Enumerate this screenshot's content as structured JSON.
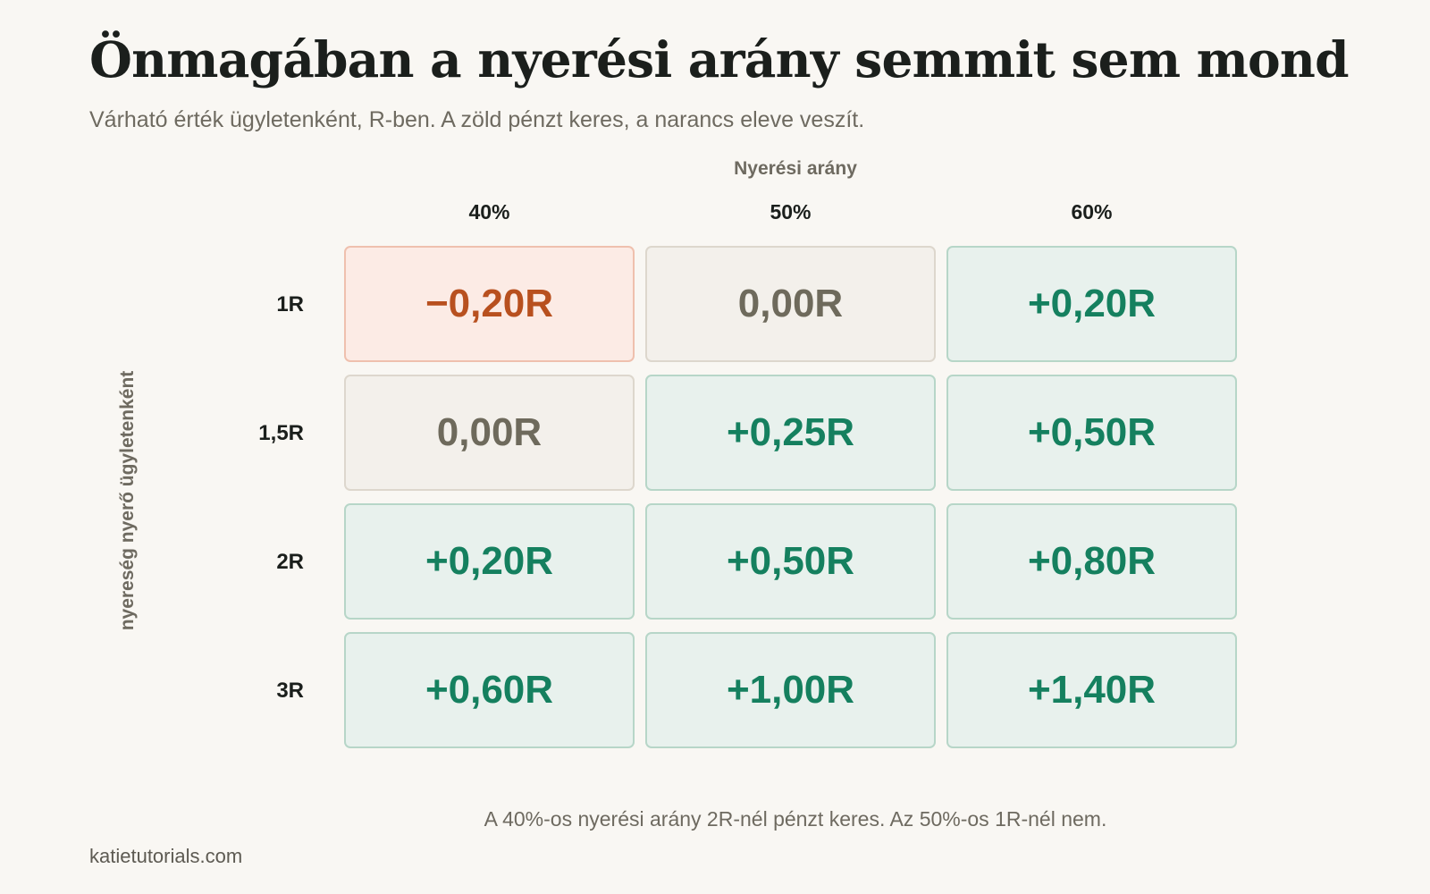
{
  "header": {
    "title": "Önmagában a nyerési arány semmit sem mond",
    "subtitle": "Várható érték ügyletenként, R-ben. A zöld pénzt keres, a narancs eleve veszít."
  },
  "chart_data": {
    "type": "heatmap",
    "title": "Önmagában a nyerési arány semmit sem mond",
    "subtitle": "Várható érték ügyletenként, R-ben. A zöld pénzt keres, a narancs eleve veszít.",
    "xlabel": "Nyerési arány",
    "ylabel": "nyereség nyerő ügyletenként",
    "columns": [
      "40%",
      "50%",
      "60%"
    ],
    "rows": [
      "1R",
      "1,5R",
      "2R",
      "3R"
    ],
    "win_rates": [
      0.4,
      0.5,
      0.6
    ],
    "win_sizes_R": [
      1,
      1.5,
      2,
      3
    ],
    "values": [
      [
        -0.2,
        0.0,
        0.2
      ],
      [
        0.0,
        0.25,
        0.5
      ],
      [
        0.2,
        0.5,
        0.8
      ],
      [
        0.6,
        1.0,
        1.4
      ]
    ],
    "labels": [
      [
        "−0,20R",
        "0,00R",
        "+0,20R"
      ],
      [
        "0,00R",
        "+0,25R",
        "+0,50R"
      ],
      [
        "+0,20R",
        "+0,50R",
        "+0,80R"
      ],
      [
        "+0,60R",
        "+1,00R",
        "+1,40R"
      ]
    ],
    "colors": {
      "positive_text": "#15805f",
      "positive_fill": "#e8f1ed",
      "zero_text": "#6e6a5c",
      "zero_fill": "#f3f0eb",
      "negative_text": "#b8501f",
      "negative_fill": "#fcebe5"
    }
  },
  "footnote": "A 40%-os nyerési arány 2R-nél pénzt keres. Az 50%-os 1R-nél nem.",
  "source": "katietutorials.com"
}
